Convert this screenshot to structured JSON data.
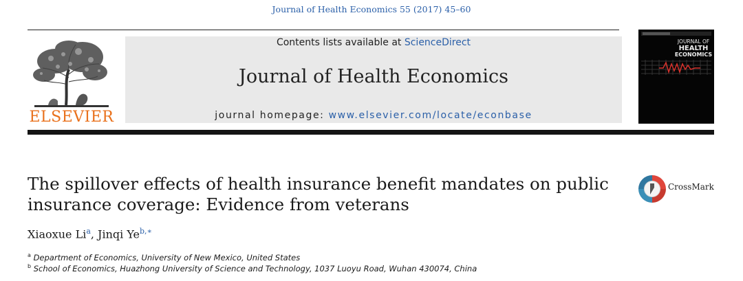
{
  "header": {
    "citation": "Journal of Health Economics 55 (2017) 45–60",
    "contents_prefix": "Contents lists available at ",
    "contents_link": "ScienceDirect",
    "journal_title": "Journal of Health Economics",
    "homepage_prefix": "journal homepage: ",
    "homepage_url": "www.elsevier.com/locate/econbase",
    "publisher_logo_text": "ELSEVIER",
    "cover_title_line1": "JOURNAL OF",
    "cover_title_line2": "HEALTH",
    "cover_title_line3": "ECONOMICS"
  },
  "article": {
    "title_line1": "The spillover effects of health insurance benefit mandates on public",
    "title_line2": "insurance coverage: Evidence from veterans",
    "crossmark_label": "CrossMark",
    "authors": [
      {
        "name": "Xiaoxue Li",
        "sup": "a"
      },
      {
        "name": "Jinqi Ye",
        "sup": "b,∗"
      }
    ],
    "author_separator": ", ",
    "affiliations": [
      {
        "sup": "a",
        "text": "Department of Economics, University of New Mexico, United States"
      },
      {
        "sup": "b",
        "text": "School of Economics, Huazhong University of Science and Technology, 1037 Luoyu Road, Wuhan 430074, China"
      }
    ]
  },
  "colors": {
    "link": "#2a5fa8",
    "elsevier_orange": "#e9711c",
    "banner_bg": "#e9e9e9",
    "cover_red": "#d6322c"
  }
}
